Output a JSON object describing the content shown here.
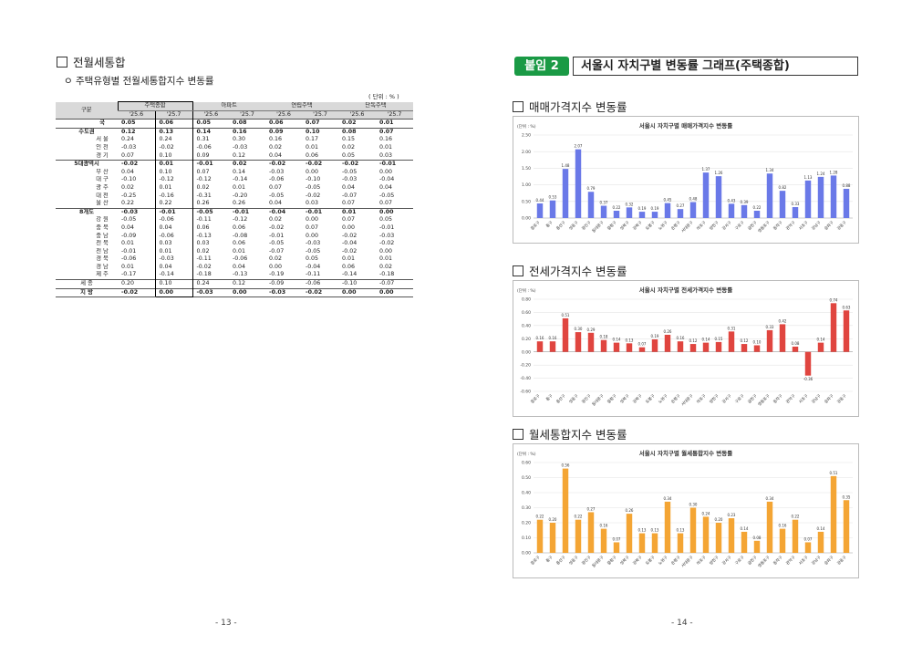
{
  "left": {
    "section_title": "전월세통합",
    "sub_title": "ㅇ 주택유형별 전월세통합지수 변동률",
    "unit": "( 단위 :   % )",
    "header": {
      "col0": "구분",
      "groups": [
        "주택종합",
        "아파트",
        "연립주택",
        "단독주택"
      ],
      "periods": [
        "'25.6",
        "'25.7"
      ]
    },
    "rows": [
      {
        "a": "전",
        "b": "국",
        "v": [
          "0.05",
          "0.06",
          "0.05",
          "0.08",
          "0.06",
          "0.07",
          "0.02",
          "0.01"
        ],
        "bold": true,
        "cls": "line-top"
      },
      {
        "a": "수도권",
        "b": "",
        "v": [
          "0.12",
          "0.13",
          "0.14",
          "0.16",
          "0.09",
          "0.10",
          "0.08",
          "0.07"
        ],
        "bold": true,
        "cls": "line-top"
      },
      {
        "a": "",
        "b": "서   울",
        "v": [
          "0.24",
          "0.24",
          "0.31",
          "0.30",
          "0.16",
          "0.17",
          "0.15",
          "0.16"
        ]
      },
      {
        "a": "",
        "b": "인   천",
        "v": [
          "-0.03",
          "-0.02",
          "-0.06",
          "-0.03",
          "0.02",
          "0.01",
          "0.02",
          "0.01"
        ]
      },
      {
        "a": "",
        "b": "경   기",
        "v": [
          "0.07",
          "0.10",
          "0.09",
          "0.12",
          "0.04",
          "0.06",
          "0.05",
          "0.03"
        ]
      },
      {
        "a": "5대광역시",
        "b": "",
        "v": [
          "-0.02",
          "0.01",
          "-0.01",
          "0.02",
          "-0.02",
          "-0.02",
          "-0.02",
          "-0.01"
        ],
        "bold": true,
        "cls": "line-top"
      },
      {
        "a": "",
        "b": "부   산",
        "v": [
          "0.04",
          "0.10",
          "0.07",
          "0.14",
          "-0.03",
          "0.00",
          "-0.05",
          "0.00"
        ]
      },
      {
        "a": "",
        "b": "대   구",
        "v": [
          "-0.10",
          "-0.12",
          "-0.12",
          "-0.14",
          "-0.06",
          "-0.10",
          "-0.03",
          "-0.04"
        ]
      },
      {
        "a": "",
        "b": "광   주",
        "v": [
          "0.02",
          "0.01",
          "0.02",
          "0.01",
          "0.07",
          "-0.05",
          "0.04",
          "0.04"
        ]
      },
      {
        "a": "",
        "b": "대   전",
        "v": [
          "-0.25",
          "-0.16",
          "-0.31",
          "-0.20",
          "-0.05",
          "-0.02",
          "-0.07",
          "-0.05"
        ]
      },
      {
        "a": "",
        "b": "울   산",
        "v": [
          "0.22",
          "0.22",
          "0.26",
          "0.26",
          "0.04",
          "0.03",
          "0.07",
          "0.07"
        ]
      },
      {
        "a": "8개도",
        "b": "",
        "v": [
          "-0.03",
          "-0.01",
          "-0.05",
          "-0.01",
          "-0.04",
          "-0.01",
          "0.01",
          "0.00"
        ],
        "bold": true,
        "cls": "line-top"
      },
      {
        "a": "",
        "b": "강   원",
        "v": [
          "-0.05",
          "-0.06",
          "-0.11",
          "-0.12",
          "0.02",
          "0.00",
          "0.07",
          "0.05"
        ]
      },
      {
        "a": "",
        "b": "충   북",
        "v": [
          "0.04",
          "0.04",
          "0.06",
          "0.06",
          "-0.02",
          "0.07",
          "0.00",
          "-0.01"
        ]
      },
      {
        "a": "",
        "b": "충   남",
        "v": [
          "-0.09",
          "-0.06",
          "-0.13",
          "-0.08",
          "-0.01",
          "0.00",
          "-0.02",
          "-0.03"
        ]
      },
      {
        "a": "",
        "b": "전   북",
        "v": [
          "0.01",
          "0.03",
          "0.03",
          "0.06",
          "-0.05",
          "-0.03",
          "-0.04",
          "-0.02"
        ]
      },
      {
        "a": "",
        "b": "전   남",
        "v": [
          "-0.01",
          "0.01",
          "0.02",
          "0.01",
          "-0.07",
          "-0.05",
          "-0.02",
          "0.00"
        ]
      },
      {
        "a": "",
        "b": "경   북",
        "v": [
          "-0.06",
          "-0.03",
          "-0.11",
          "-0.06",
          "0.02",
          "0.05",
          "0.01",
          "0.01"
        ]
      },
      {
        "a": "",
        "b": "경   남",
        "v": [
          "0.01",
          "0.04",
          "-0.02",
          "0.04",
          "0.00",
          "-0.04",
          "0.06",
          "0.02"
        ]
      },
      {
        "a": "",
        "b": "제   주",
        "v": [
          "-0.17",
          "-0.14",
          "-0.18",
          "-0.13",
          "-0.19",
          "-0.11",
          "-0.14",
          "-0.18"
        ]
      },
      {
        "a": "세   종",
        "b": "",
        "v": [
          "0.20",
          "0.10",
          "0.24",
          "0.12",
          "-0.09",
          "-0.06",
          "-0.10",
          "-0.07"
        ],
        "cls": "line-top"
      },
      {
        "a": "지   방",
        "b": "",
        "v": [
          "-0.02",
          "0.00",
          "-0.03",
          "0.00",
          "-0.03",
          "-0.02",
          "0.00",
          "0.00"
        ],
        "bold": true,
        "cls": "line-top line-bot"
      }
    ],
    "page_number": "- 13 -"
  },
  "right": {
    "badge": "붙임 2",
    "banner": "서울시 자치구별 변동률 그래프(주택종합)",
    "sections": [
      "매매가격지수 변동률",
      "전세가격지수 변동률",
      "월세통합지수 변동률"
    ],
    "page_number": "- 14 -"
  },
  "chart_data": [
    {
      "type": "bar",
      "title": "서울시 자치구별 매매가격지수 변동률",
      "unit": "(단위 : %)",
      "color": "#6a79e8",
      "categories": [
        "종로구",
        "중구",
        "용산구",
        "성동구",
        "광진구",
        "동대문구",
        "중랑구",
        "성북구",
        "강북구",
        "도봉구",
        "노원구",
        "은평구",
        "서대문구",
        "마포구",
        "양천구",
        "강서구",
        "구로구",
        "금천구",
        "영등포구",
        "동작구",
        "관악구",
        "서초구",
        "강남구",
        "송파구",
        "강동구"
      ],
      "values": [
        0.44,
        0.53,
        1.48,
        2.07,
        0.79,
        0.37,
        0.22,
        0.32,
        0.19,
        0.19,
        0.45,
        0.27,
        0.48,
        1.37,
        1.26,
        0.43,
        0.39,
        0.22,
        1.34,
        0.82,
        0.33,
        1.13,
        1.24,
        1.28,
        0.88
      ],
      "yticks": [
        "2.50",
        "2.00",
        "1.50",
        "1.00",
        "0.50",
        "0.00"
      ],
      "ylim": [
        0,
        2.5
      ]
    },
    {
      "type": "bar",
      "title": "서울시 자치구별 전세가격지수 변동률",
      "unit": "(단위 : %)",
      "color": "#e0453f",
      "categories": [
        "종로구",
        "중구",
        "용산구",
        "성동구",
        "광진구",
        "동대문구",
        "중랑구",
        "성북구",
        "강북구",
        "도봉구",
        "노원구",
        "은평구",
        "서대문구",
        "마포구",
        "양천구",
        "강서구",
        "구로구",
        "금천구",
        "영등포구",
        "동작구",
        "관악구",
        "서초구",
        "강남구",
        "송파구",
        "강동구"
      ],
      "values": [
        0.16,
        0.16,
        0.51,
        0.3,
        0.29,
        0.18,
        0.14,
        0.13,
        0.07,
        0.19,
        0.26,
        0.16,
        0.12,
        0.14,
        0.15,
        0.31,
        0.12,
        0.1,
        0.33,
        0.42,
        0.08,
        -0.36,
        0.14,
        0.74,
        0.63
      ],
      "yticks": [
        "0.80",
        "0.60",
        "0.40",
        "0.20",
        "0.00",
        "-0.20",
        "-0.40",
        "-0.60"
      ],
      "ylim": [
        -0.6,
        0.8
      ]
    },
    {
      "type": "bar",
      "title": "서울시 자치구별 월세통합지수 변동률",
      "unit": "(단위 : %)",
      "color": "#f4a534",
      "categories": [
        "종로구",
        "중구",
        "용산구",
        "성동구",
        "광진구",
        "동대문구",
        "중랑구",
        "성북구",
        "강북구",
        "도봉구",
        "노원구",
        "은평구",
        "서대문구",
        "마포구",
        "양천구",
        "강서구",
        "구로구",
        "금천구",
        "영등포구",
        "동작구",
        "관악구",
        "서초구",
        "강남구",
        "송파구",
        "강동구"
      ],
      "values": [
        0.22,
        0.2,
        0.56,
        0.22,
        0.27,
        0.16,
        0.07,
        0.26,
        0.13,
        0.13,
        0.34,
        0.13,
        0.3,
        0.24,
        0.2,
        0.23,
        0.14,
        0.08,
        0.34,
        0.16,
        0.22,
        0.07,
        0.14,
        0.51,
        0.35
      ],
      "yticks": [
        "0.60",
        "0.50",
        "0.40",
        "0.30",
        "0.20",
        "0.10",
        "0.00"
      ],
      "ylim": [
        0,
        0.6
      ]
    }
  ]
}
